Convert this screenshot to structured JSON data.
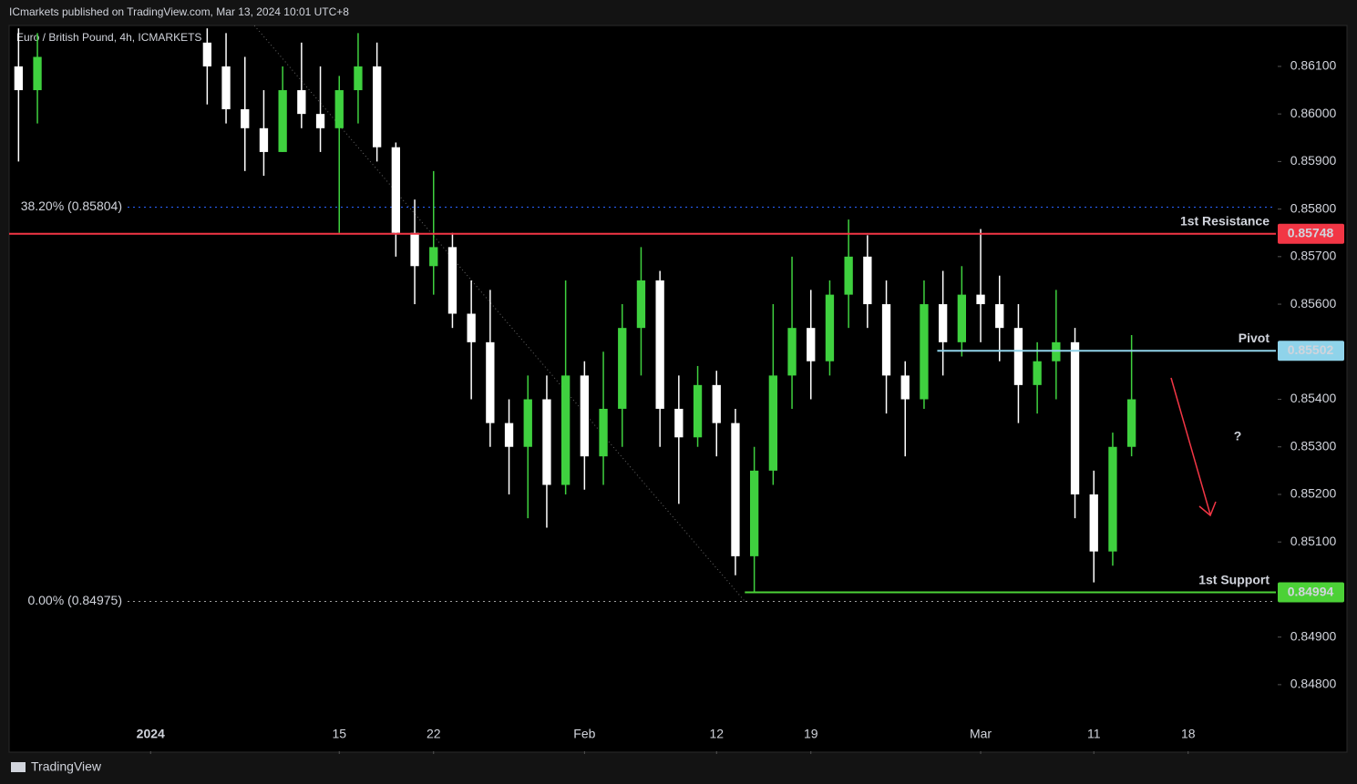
{
  "header": "ICmarkets published on TradingView.com, Mar 13, 2024 10:01 UTC+8",
  "footer": "TradingView",
  "chart_data": {
    "type": "candlestick",
    "title": "Euro / British Pound, 4h, ICMARKETS",
    "xlim": [
      -7.5,
      59.65
    ],
    "ylim": [
      0.8466,
      0.86186
    ],
    "xticks": [
      {
        "value": 0,
        "label": "2024"
      },
      {
        "value": 10,
        "label": "15"
      },
      {
        "value": 15,
        "label": "22"
      },
      {
        "value": 23,
        "label": "Feb"
      },
      {
        "value": 30,
        "label": "12"
      },
      {
        "value": 35,
        "label": "19"
      },
      {
        "value": 44,
        "label": "Mar"
      },
      {
        "value": 50,
        "label": "11"
      },
      {
        "value": 55,
        "label": "18"
      }
    ],
    "yticks": [
      {
        "value": 0.861,
        "label": "0.86100"
      },
      {
        "value": 0.86,
        "label": "0.86000"
      },
      {
        "value": 0.859,
        "label": "0.85900"
      },
      {
        "value": 0.858,
        "label": "0.85800"
      },
      {
        "value": 0.857,
        "label": "0.85700"
      },
      {
        "value": 0.856,
        "label": "0.85600"
      },
      {
        "value": 0.855,
        "label": "0.85500"
      },
      {
        "value": 0.854,
        "label": "0.85400"
      },
      {
        "value": 0.853,
        "label": "0.85300"
      },
      {
        "value": 0.852,
        "label": "0.85200"
      },
      {
        "value": 0.851,
        "label": "0.85100"
      },
      {
        "value": 0.85,
        "label": "0.85000"
      },
      {
        "value": 0.849,
        "label": "0.84900"
      },
      {
        "value": 0.848,
        "label": "0.84800"
      }
    ],
    "up_color": "#3fd13f",
    "down_color": "#ffffff",
    "x": [
      -7,
      -6,
      3,
      4,
      5,
      6,
      7,
      8,
      9,
      10,
      11,
      12,
      13,
      14,
      15,
      16,
      17,
      18,
      19,
      20,
      21,
      22,
      23,
      24,
      25,
      26,
      27,
      28,
      29,
      30,
      31,
      32,
      33,
      34,
      35,
      36,
      37,
      38,
      39,
      40,
      41,
      42,
      43,
      44,
      45,
      46,
      47,
      48,
      49,
      50,
      51,
      52
    ],
    "open": [
      0.861,
      0.8605,
      0.8615,
      0.861,
      0.8601,
      0.8597,
      0.8592,
      0.8605,
      0.86,
      0.8597,
      0.8605,
      0.861,
      0.8593,
      0.8575,
      0.8568,
      0.8572,
      0.8558,
      0.8552,
      0.8535,
      0.853,
      0.854,
      0.8522,
      0.8545,
      0.8528,
      0.8538,
      0.8555,
      0.8565,
      0.8538,
      0.8532,
      0.8543,
      0.8535,
      0.8507,
      0.8525,
      0.8545,
      0.8555,
      0.8548,
      0.8562,
      0.857,
      0.856,
      0.8545,
      0.854,
      0.856,
      0.8552,
      0.8562,
      0.856,
      0.8555,
      0.8543,
      0.8548,
      0.8552,
      0.852,
      0.8508,
      0.853
    ],
    "high": [
      0.8618,
      0.8617,
      0.8618,
      0.8617,
      0.8612,
      0.8605,
      0.861,
      0.8615,
      0.861,
      0.8608,
      0.8617,
      0.8615,
      0.8594,
      0.8582,
      0.8588,
      0.8575,
      0.8565,
      0.8563,
      0.854,
      0.8545,
      0.8545,
      0.8565,
      0.8548,
      0.855,
      0.856,
      0.8572,
      0.8567,
      0.8545,
      0.8547,
      0.8546,
      0.8538,
      0.853,
      0.856,
      0.857,
      0.8563,
      0.8565,
      0.85778,
      0.85745,
      0.8565,
      0.8548,
      0.8565,
      0.8567,
      0.8568,
      0.85758,
      0.8566,
      0.856,
      0.8552,
      0.8563,
      0.8555,
      0.8525,
      0.8533,
      0.85535
    ],
    "low": [
      0.859,
      0.8598,
      0.8602,
      0.8598,
      0.8588,
      0.8587,
      0.8592,
      0.8597,
      0.8592,
      0.8575,
      0.8598,
      0.859,
      0.857,
      0.856,
      0.8562,
      0.8555,
      0.854,
      0.853,
      0.852,
      0.8515,
      0.8513,
      0.852,
      0.8521,
      0.8522,
      0.853,
      0.8545,
      0.853,
      0.8518,
      0.853,
      0.8528,
      0.8503,
      0.84994,
      0.8522,
      0.8538,
      0.854,
      0.8545,
      0.8555,
      0.8555,
      0.8537,
      0.8528,
      0.8538,
      0.8545,
      0.8549,
      0.8552,
      0.8548,
      0.8535,
      0.8537,
      0.854,
      0.8515,
      0.85015,
      0.8505,
      0.8528
    ],
    "close": [
      0.8605,
      0.8612,
      0.861,
      0.8601,
      0.8597,
      0.8592,
      0.8605,
      0.86,
      0.8597,
      0.8605,
      0.861,
      0.8593,
      0.8575,
      0.8568,
      0.8572,
      0.8558,
      0.8552,
      0.8535,
      0.853,
      0.854,
      0.8522,
      0.8545,
      0.8528,
      0.8538,
      0.8555,
      0.8565,
      0.8538,
      0.8532,
      0.8543,
      0.8535,
      0.8507,
      0.8525,
      0.8545,
      0.8555,
      0.8548,
      0.8562,
      0.857,
      0.856,
      0.8545,
      0.854,
      0.856,
      0.8552,
      0.8562,
      0.856,
      0.8555,
      0.8543,
      0.8548,
      0.8552,
      0.852,
      0.8508,
      0.853,
      0.854
    ],
    "levels": [
      {
        "name": "1st Resistance",
        "value": 0.85748,
        "color": "#f23645",
        "from": -7.5
      },
      {
        "name": "Pivot",
        "value": 0.85502,
        "color": "#8fd3ea",
        "from": 41.7
      },
      {
        "name": "1st Support",
        "value": 0.84994,
        "color": "#4cd137",
        "from": 31.5
      }
    ],
    "fib": [
      {
        "label": "38.20% (0.85804)",
        "value": 0.85804,
        "color": "#2962ff"
      },
      {
        "label": "0.00% (0.84975)",
        "value": 0.84975,
        "color": "#9e9e9e"
      }
    ],
    "trendline": {
      "x": [
        5.5,
        31.5
      ],
      "y": [
        0.86186,
        0.84975
      ]
    },
    "annotation": "?"
  }
}
